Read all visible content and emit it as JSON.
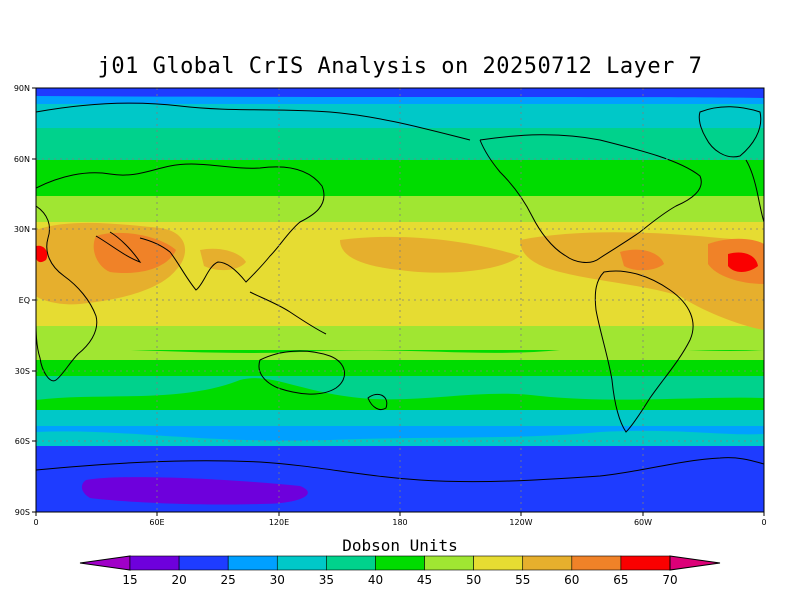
{
  "title": "j01 Global CrIS Analysis on 20250712 Layer 7",
  "map": {
    "lat_labels": [
      "90N",
      "60N",
      "30N",
      "EQ",
      "30S",
      "60S",
      "90S"
    ],
    "lon_labels": [
      "0",
      "60E",
      "120E",
      "180",
      "120W",
      "60W",
      "0"
    ]
  },
  "colorbar": {
    "title": "Dobson Units",
    "tick_labels": [
      "15",
      "20",
      "25",
      "30",
      "35",
      "40",
      "45",
      "50",
      "55",
      "60",
      "65",
      "70"
    ],
    "colors": [
      "#a000c8",
      "#6e00dc",
      "#1e3cff",
      "#00a0ff",
      "#00c8c8",
      "#00d28c",
      "#00dc00",
      "#a0e632",
      "#e6dc32",
      "#e6af2d",
      "#f08228",
      "#fa0000",
      "#dc0078"
    ]
  },
  "legend_colors": {
    "background": "#ffffff",
    "grid": "#7f7f7f",
    "coast": "#000000"
  }
}
